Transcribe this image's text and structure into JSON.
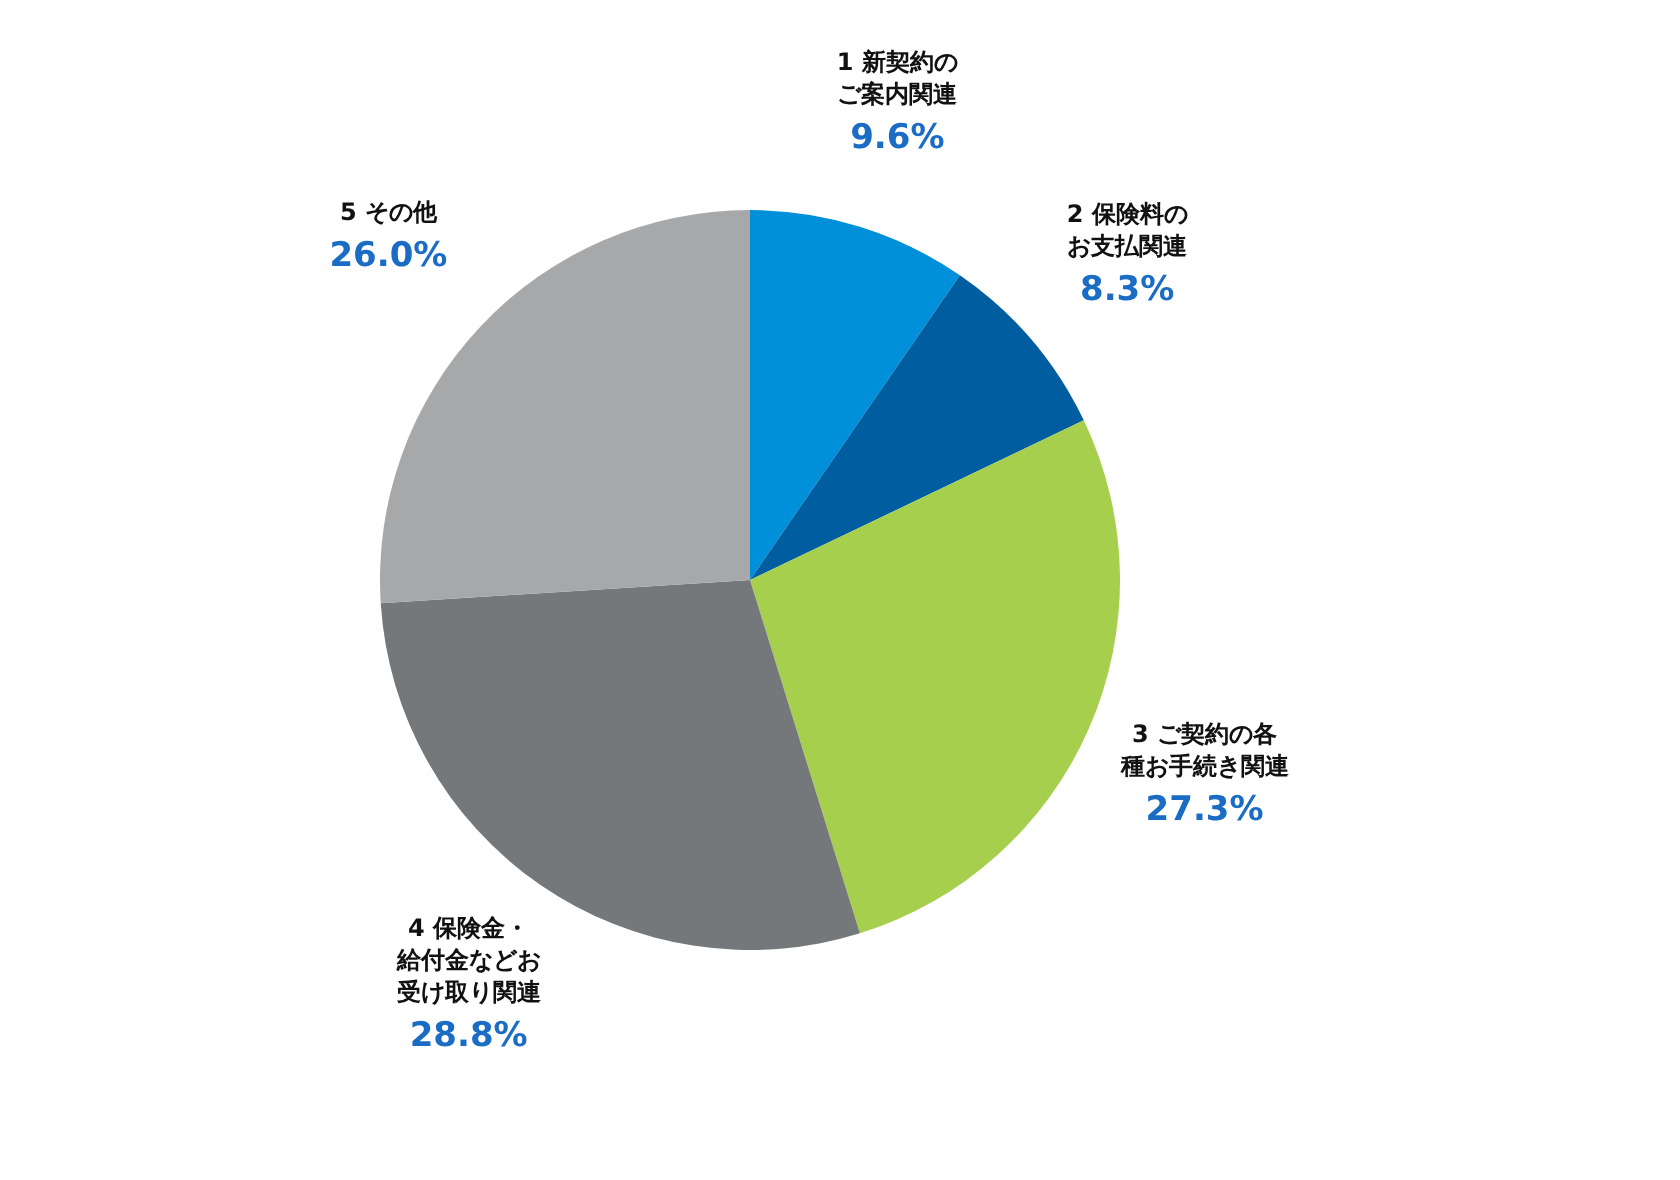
{
  "chart_data": {
    "type": "pie",
    "categories": [
      "1 新契約のご案内関連",
      "2 保険料のお支払関連",
      "3 ご契約の各種お手続き関連",
      "4 保険金・給付金などお受け取り関連",
      "5 その他"
    ],
    "values": [
      9.6,
      8.3,
      27.3,
      28.8,
      26.0
    ],
    "value_labels": [
      "9.6%",
      "8.3%",
      "27.3%",
      "28.8%",
      "26.0%"
    ],
    "colors": [
      "#0090da",
      "#005d9f",
      "#a6cf4d",
      "#75787b",
      "#a7a8aa"
    ]
  }
}
